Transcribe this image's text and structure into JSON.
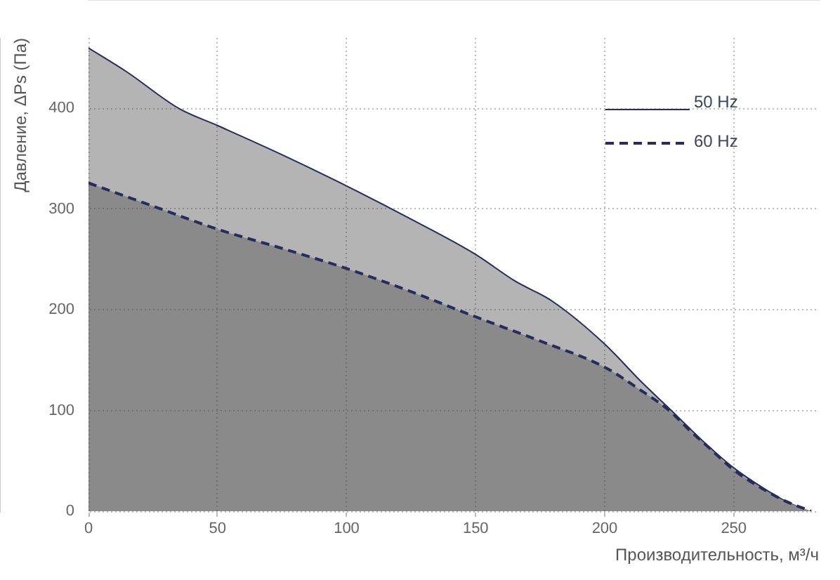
{
  "chart_data": {
    "type": "area",
    "xlabel": "Производительность, м³/ч",
    "ylabel": "Давление, ΔPs (Па)",
    "xlim": [
      0,
      283
    ],
    "ylim": [
      0,
      470
    ],
    "xticks": [
      0,
      50,
      100,
      150,
      200,
      250
    ],
    "yticks": [
      0,
      100,
      200,
      300,
      400
    ],
    "grid": true,
    "legend": "top right",
    "marker": "none",
    "series": [
      {
        "name": "50 Hz",
        "color": "#b4b4b4",
        "line_style": "solid",
        "x": [
          0,
          15,
          35,
          50,
          75,
          100,
          125,
          150,
          165,
          180,
          200,
          214,
          225,
          240,
          250,
          262,
          270,
          279
        ],
        "values": [
          460,
          436,
          400,
          383,
          354,
          323,
          290,
          255,
          229,
          208,
          166,
          129,
          102,
          65,
          43,
          22,
          10,
          0
        ]
      },
      {
        "name": "60 Hz",
        "color": "#8a8a8a",
        "line_style": "dashed",
        "x": [
          0,
          25,
          50,
          75,
          100,
          125,
          150,
          175,
          200,
          214,
          225,
          233,
          240,
          250,
          262,
          270,
          280
        ],
        "values": [
          326,
          303,
          280,
          261,
          241,
          218,
          193,
          169,
          143,
          120,
          100,
          80,
          64,
          41,
          21,
          10,
          0
        ]
      }
    ]
  }
}
